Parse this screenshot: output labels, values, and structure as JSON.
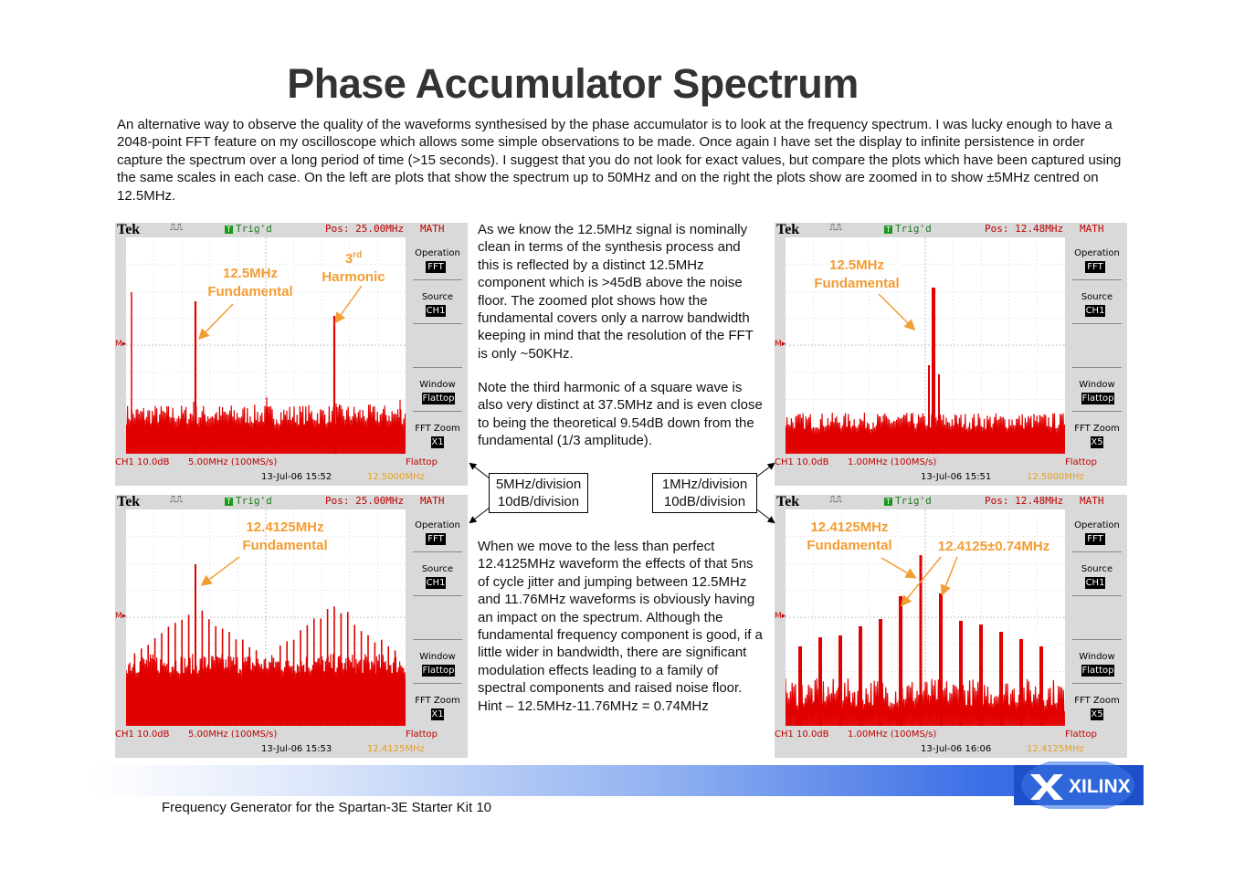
{
  "title": "Phase Accumulator Spectrum",
  "intro": "An alternative way to observe the quality of the waveforms synthesised by the phase accumulator is to look at the frequency spectrum. I was lucky enough to have a 2048-point FFT feature on my oscilloscope which allows some simple observations to be made. Once again I have set the display to infinite persistence in order capture the spectrum over a long period of time (>15 seconds). I suggest that you do not look for exact values, but compare the plots which have been captured using the same scales in each case. On the left are plots that show the spectrum up to 50MHz and on the right the plots show are zoomed in to show ±5MHz centred on 12.5MHz.",
  "text_top_1": "As we know the 12.5MHz signal is nominally clean in terms of the synthesis process and this is reflected by a distinct 12.5MHz component which is >45dB above the noise floor. The zoomed plot shows how the fundamental covers only a narrow bandwidth keeping in mind that the resolution of the FFT is only ~50KHz.",
  "text_top_2": "Note the third harmonic of a square wave is also very distinct at 37.5MHz and is even close to being the theoretical 9.54dB down from the fundamental (1/3 amplitude).",
  "text_bottom": "When we move to the less than perfect 12.4125MHz waveform the effects of that 5ns of cycle jitter and jumping between 12.5MHz and 11.76MHz waveforms is obviously having an impact on the spectrum. Although the fundamental frequency component is good, if a little wider in bandwidth, there are significant modulation effects leading to a family of spectral components and raised noise floor. Hint – 12.5MHz-11.76MHz = 0.74MHz",
  "box_left": {
    "line1": "5MHz/division",
    "line2": "10dB/division"
  },
  "box_right": {
    "line1": "1MHz/division",
    "line2": "10dB/division"
  },
  "footer": "Frequency Generator for the Spartan-3E Starter Kit 10",
  "logo_text": "XILINX",
  "scope_common": {
    "brand": "Tek",
    "acq": "⎍⎍",
    "trig": "Trig'd",
    "trig_icon": "T",
    "math": "MATH",
    "op_label": "Operation",
    "op_val": "FFT",
    "src_label": "Source",
    "src_val": "CH1",
    "win_label": "Window",
    "win_val": "Flattop",
    "zoom_label": "FFT Zoom",
    "ch": "CH1 10.0dB",
    "flattop": "Flattop"
  },
  "scopes": [
    {
      "pos": "Pos: 25.00MHz",
      "zoom": "X1",
      "span": "5.00MHz (100MS/s)",
      "date": "13-Jul-06 15:52",
      "center": "12.5000MHz"
    },
    {
      "pos": "Pos: 12.48MHz",
      "zoom": "X5",
      "span": "1.00MHz (100MS/s)",
      "date": "13-Jul-06 15:51",
      "center": "12.5000MHz"
    },
    {
      "pos": "Pos: 25.00MHz",
      "zoom": "X1",
      "span": "5.00MHz (100MS/s)",
      "date": "13-Jul-06 15:53",
      "center": "12.4125MHz"
    },
    {
      "pos": "Pos: 12.48MHz",
      "zoom": "X5",
      "span": "1.00MHz (100MS/s)",
      "date": "13-Jul-06 16:06",
      "center": "12.4125MHz"
    }
  ],
  "annotations": {
    "a1_l1": "12.5MHz",
    "a1_l2": "Fundamental",
    "a2_l1": "3",
    "a2_sup": "rd",
    "a2_l2": "Harmonic",
    "a3_l1": "12.5MHz",
    "a3_l2": "Fundamental",
    "a4_l1": "12.4125MHz",
    "a4_l2": "Fundamental",
    "a5_l1": "12.4125MHz",
    "a5_l2": "Fundamental",
    "a6": "12.4125±0.74MHz"
  },
  "colors": {
    "trace": "#e00000",
    "annotation": "#f39c32",
    "title": "#333333",
    "brand_blue": "#2d5fe0"
  }
}
